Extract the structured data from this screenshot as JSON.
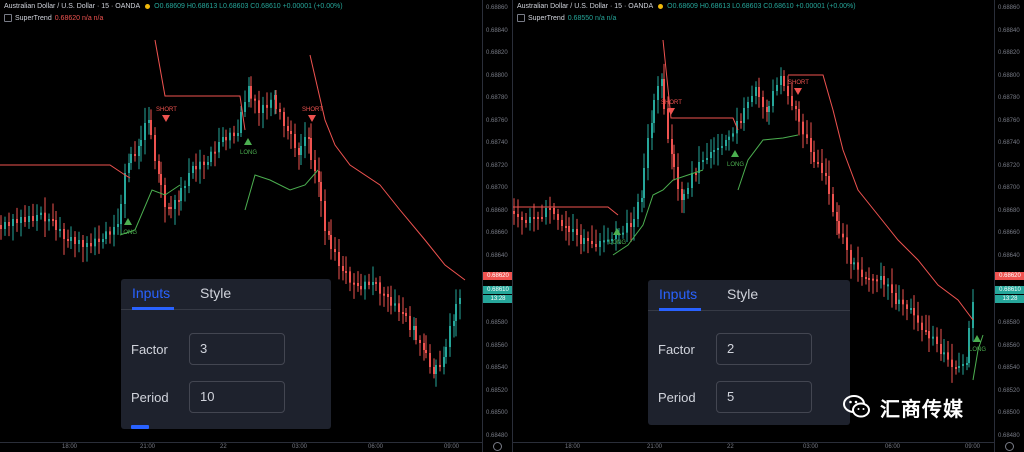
{
  "left": {
    "header": {
      "symbol": "Australian Dollar / U.S. Dollar · 15 · OANDA",
      "ohlc": "O0.68609 H0.68613 L0.68603 C0.68610 +0.00001 (+0.00%)",
      "indicator_name": "SuperTrend",
      "indicator_value": "0.68620",
      "indicator_na": "n/a n/a"
    },
    "price_ticks": [
      "0.68860",
      "0.68840",
      "0.68820",
      "0.68800",
      "0.68780",
      "0.68760",
      "0.68740",
      "0.68720",
      "0.68700",
      "0.68680",
      "0.68660",
      "0.68640",
      "0.68620",
      "0.68600",
      "0.68580",
      "0.68560",
      "0.68540",
      "0.68520",
      "0.68500",
      "0.68480"
    ],
    "price_tag_red": "0.68620",
    "price_tag_green": "0.68610",
    "price_tag_time": "13:28",
    "time_labels": [
      "18:00",
      "21:00",
      "22",
      "03:00",
      "06:00",
      "09:00"
    ],
    "signals": {
      "short": "SHORT",
      "long": "LONG"
    },
    "dialog": {
      "tab_inputs": "Inputs",
      "tab_style": "Style",
      "factor_label": "Factor",
      "factor_value": "3",
      "period_label": "Period",
      "period_value": "10"
    }
  },
  "right": {
    "header": {
      "symbol": "Australian Dollar / U.S. Dollar · 15 · OANDA",
      "ohlc": "O0.68609 H0.68613 L0.68603 C0.68610 +0.00001 (+0.00%)",
      "indicator_name": "SuperTrend",
      "indicator_value": "0.68550",
      "indicator_na": "n/a n/a"
    },
    "price_ticks": [
      "0.68860",
      "0.68840",
      "0.68820",
      "0.68800",
      "0.68780",
      "0.68760",
      "0.68740",
      "0.68720",
      "0.68700",
      "0.68680",
      "0.68660",
      "0.68640",
      "0.68620",
      "0.68600",
      "0.68580",
      "0.68560",
      "0.68540",
      "0.68520",
      "0.68500",
      "0.68480"
    ],
    "price_tag_red": "0.68620",
    "price_tag_green": "0.68610",
    "price_tag_time": "13:28",
    "time_labels": [
      "18:00",
      "21:00",
      "22",
      "03:00",
      "06:00",
      "09:00"
    ],
    "signals": {
      "short": "SHORT",
      "long": "LONG"
    },
    "dialog": {
      "tab_inputs": "Inputs",
      "tab_style": "Style",
      "factor_label": "Factor",
      "factor_value": "2",
      "period_label": "Period",
      "period_value": "5"
    }
  },
  "watermark": {
    "text": "汇商传媒",
    "icon": "wechat-icon"
  },
  "colors": {
    "up": "#26a69a",
    "down": "#ef5350",
    "accent": "#2962ff",
    "trend_up": "#4caf50",
    "trend_down": "#ef5350"
  }
}
